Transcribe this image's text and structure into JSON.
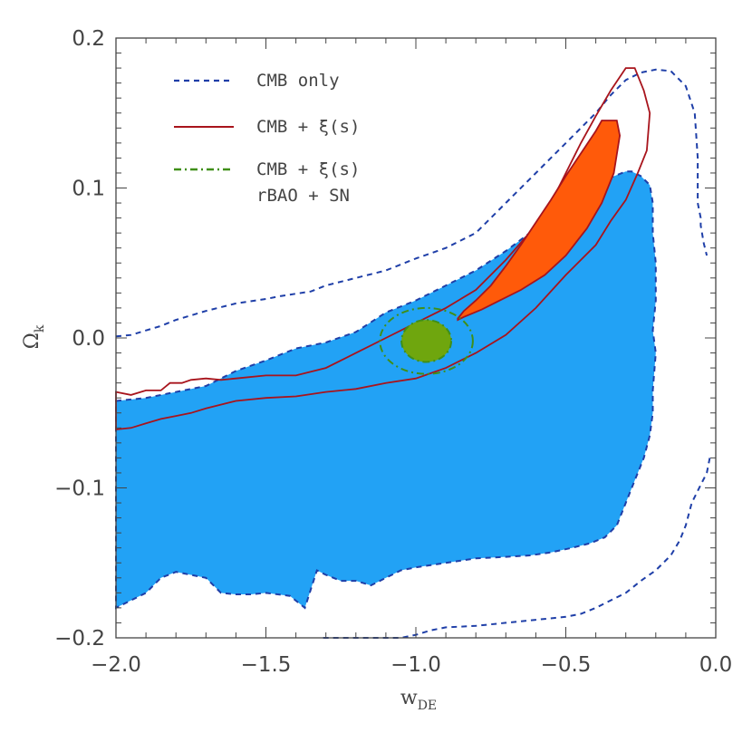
{
  "chart_data": {
    "type": "contour",
    "xlabel": "w",
    "xlabel_sub": "DE",
    "ylabel": "Ω",
    "ylabel_sub": "k",
    "xlim": [
      -2.0,
      0.0
    ],
    "ylim": [
      -0.2,
      0.2
    ],
    "xticks": [
      -2.0,
      -1.5,
      -1.0,
      -0.5,
      0.0
    ],
    "xtick_labels": [
      "−2.0",
      "−1.5",
      "−1.0",
      "−0.5",
      "0.0"
    ],
    "yticks": [
      -0.2,
      -0.1,
      0.0,
      0.1,
      0.2
    ],
    "ytick_labels": [
      "−0.2",
      "−0.1",
      "0.0",
      "0.1",
      "0.2"
    ],
    "grid": false,
    "legend_position": "top-left",
    "colors": {
      "cmb": "#1f3fa8",
      "cmb_fill": "#22a2f5",
      "xi": "#a8141c",
      "xi_fill": "#ff5a0a",
      "all": "#3f8f18",
      "all_fill": "#6fa60e",
      "frame": "#444444"
    },
    "series": [
      {
        "name": "CMB only",
        "line_style": "dashed",
        "color_key": "cmb",
        "inner_filled": {
          "color_key": "cmb_fill",
          "points": [
            [
              -2.0,
              -0.042
            ],
            [
              -1.9,
              -0.04
            ],
            [
              -1.7,
              -0.032
            ],
            [
              -1.6,
              -0.022
            ],
            [
              -1.5,
              -0.015
            ],
            [
              -1.4,
              -0.007
            ],
            [
              -1.3,
              -0.003
            ],
            [
              -1.2,
              0.004
            ],
            [
              -1.1,
              0.017
            ],
            [
              -1.0,
              0.025
            ],
            [
              -0.9,
              0.035
            ],
            [
              -0.8,
              0.045
            ],
            [
              -0.7,
              0.058
            ],
            [
              -0.6,
              0.073
            ],
            [
              -0.5,
              0.088
            ],
            [
              -0.45,
              0.095
            ],
            [
              -0.4,
              0.102
            ],
            [
              -0.35,
              0.107
            ],
            [
              -0.3,
              0.111
            ],
            [
              -0.28,
              0.111
            ],
            [
              -0.25,
              0.108
            ],
            [
              -0.22,
              0.102
            ],
            [
              -0.21,
              0.09
            ],
            [
              -0.21,
              0.07
            ],
            [
              -0.2,
              0.05
            ],
            [
              -0.2,
              0.025
            ],
            [
              -0.21,
              0.005
            ],
            [
              -0.2,
              -0.01
            ],
            [
              -0.21,
              -0.035
            ],
            [
              -0.21,
              -0.05
            ],
            [
              -0.22,
              -0.065
            ],
            [
              -0.24,
              -0.08
            ],
            [
              -0.27,
              -0.095
            ],
            [
              -0.3,
              -0.11
            ],
            [
              -0.33,
              -0.125
            ],
            [
              -0.37,
              -0.133
            ],
            [
              -0.42,
              -0.137
            ],
            [
              -0.48,
              -0.14
            ],
            [
              -0.55,
              -0.143
            ],
            [
              -0.62,
              -0.145
            ],
            [
              -0.7,
              -0.146
            ],
            [
              -0.8,
              -0.147
            ],
            [
              -0.9,
              -0.15
            ],
            [
              -1.0,
              -0.153
            ],
            [
              -1.05,
              -0.155
            ],
            [
              -1.1,
              -0.16
            ],
            [
              -1.15,
              -0.165
            ],
            [
              -1.2,
              -0.162
            ],
            [
              -1.25,
              -0.162
            ],
            [
              -1.3,
              -0.158
            ],
            [
              -1.33,
              -0.155
            ],
            [
              -1.37,
              -0.18
            ],
            [
              -1.42,
              -0.172
            ],
            [
              -1.5,
              -0.17
            ],
            [
              -1.55,
              -0.171
            ],
            [
              -1.6,
              -0.171
            ],
            [
              -1.65,
              -0.17
            ],
            [
              -1.7,
              -0.16
            ],
            [
              -1.75,
              -0.158
            ],
            [
              -1.8,
              -0.156
            ],
            [
              -1.85,
              -0.16
            ],
            [
              -1.9,
              -0.17
            ],
            [
              -1.95,
              -0.175
            ],
            [
              -2.0,
              -0.18
            ]
          ]
        },
        "outer": {
          "closed": false,
          "points": [
            [
              -2.0,
              0.001
            ],
            [
              -1.95,
              0.002
            ],
            [
              -1.9,
              0.005
            ],
            [
              -1.85,
              0.008
            ],
            [
              -1.8,
              0.012
            ],
            [
              -1.7,
              0.018
            ],
            [
              -1.6,
              0.023
            ],
            [
              -1.5,
              0.026
            ],
            [
              -1.45,
              0.028
            ],
            [
              -1.35,
              0.031
            ],
            [
              -1.3,
              0.035
            ],
            [
              -1.2,
              0.04
            ],
            [
              -1.1,
              0.045
            ],
            [
              -1.0,
              0.053
            ],
            [
              -0.9,
              0.06
            ],
            [
              -0.8,
              0.07
            ],
            [
              -0.7,
              0.09
            ],
            [
              -0.6,
              0.11
            ],
            [
              -0.5,
              0.13
            ],
            [
              -0.4,
              0.15
            ],
            [
              -0.35,
              0.162
            ],
            [
              -0.3,
              0.172
            ],
            [
              -0.25,
              0.177
            ],
            [
              -0.2,
              0.179
            ],
            [
              -0.15,
              0.178
            ],
            [
              -0.1,
              0.168
            ],
            [
              -0.07,
              0.15
            ],
            [
              -0.06,
              0.12
            ],
            [
              -0.06,
              0.09
            ],
            [
              -0.05,
              0.08
            ],
            [
              -0.05,
              0.075
            ],
            [
              -0.04,
              0.063
            ],
            [
              -0.03,
              0.055
            ]
          ],
          "lower_arc": [
            [
              -0.02,
              -0.08
            ],
            [
              -0.03,
              -0.09
            ],
            [
              -0.05,
              -0.098
            ],
            [
              -0.08,
              -0.11
            ],
            [
              -0.1,
              -0.125
            ],
            [
              -0.12,
              -0.135
            ],
            [
              -0.15,
              -0.145
            ],
            [
              -0.2,
              -0.155
            ],
            [
              -0.25,
              -0.162
            ],
            [
              -0.3,
              -0.17
            ],
            [
              -0.35,
              -0.175
            ],
            [
              -0.4,
              -0.18
            ],
            [
              -0.45,
              -0.184
            ],
            [
              -0.5,
              -0.186
            ],
            [
              -0.6,
              -0.188
            ],
            [
              -0.7,
              -0.19
            ],
            [
              -0.8,
              -0.192
            ],
            [
              -0.9,
              -0.193
            ],
            [
              -0.95,
              -0.195
            ],
            [
              -1.0,
              -0.198
            ],
            [
              -1.05,
              -0.2
            ],
            [
              -1.1,
              -0.2
            ],
            [
              -1.2,
              -0.2
            ],
            [
              -1.31,
              -0.2
            ]
          ]
        }
      },
      {
        "name": "CMB + ξ(s)",
        "line_style": "solid",
        "color_key": "xi",
        "inner_filled": {
          "color_key": "xi_fill",
          "points": [
            [
              -0.86,
              0.013
            ],
            [
              -0.84,
              0.018
            ],
            [
              -0.8,
              0.025
            ],
            [
              -0.75,
              0.035
            ],
            [
              -0.7,
              0.048
            ],
            [
              -0.65,
              0.062
            ],
            [
              -0.6,
              0.077
            ],
            [
              -0.55,
              0.092
            ],
            [
              -0.5,
              0.108
            ],
            [
              -0.45,
              0.123
            ],
            [
              -0.4,
              0.138
            ],
            [
              -0.38,
              0.145
            ],
            [
              -0.33,
              0.145
            ],
            [
              -0.32,
              0.135
            ],
            [
              -0.34,
              0.11
            ],
            [
              -0.38,
              0.09
            ],
            [
              -0.43,
              0.073
            ],
            [
              -0.5,
              0.055
            ],
            [
              -0.57,
              0.042
            ],
            [
              -0.65,
              0.032
            ],
            [
              -0.72,
              0.025
            ],
            [
              -0.78,
              0.019
            ],
            [
              -0.84,
              0.014
            ],
            [
              -0.86,
              0.012
            ]
          ]
        },
        "outer": {
          "closed": true,
          "points": [
            [
              -2.0,
              -0.036
            ],
            [
              -1.95,
              -0.038
            ],
            [
              -1.9,
              -0.035
            ],
            [
              -1.85,
              -0.035
            ],
            [
              -1.82,
              -0.03
            ],
            [
              -1.78,
              -0.03
            ],
            [
              -1.75,
              -0.028
            ],
            [
              -1.7,
              -0.027
            ],
            [
              -1.65,
              -0.028
            ],
            [
              -1.6,
              -0.027
            ],
            [
              -1.5,
              -0.025
            ],
            [
              -1.4,
              -0.025
            ],
            [
              -1.3,
              -0.02
            ],
            [
              -1.2,
              -0.01
            ],
            [
              -1.1,
              0.0
            ],
            [
              -1.0,
              0.01
            ],
            [
              -0.9,
              0.02
            ],
            [
              -0.8,
              0.032
            ],
            [
              -0.7,
              0.052
            ],
            [
              -0.6,
              0.075
            ],
            [
              -0.55,
              0.09
            ],
            [
              -0.5,
              0.11
            ],
            [
              -0.45,
              0.13
            ],
            [
              -0.4,
              0.148
            ],
            [
              -0.35,
              0.165
            ],
            [
              -0.3,
              0.18
            ],
            [
              -0.27,
              0.18
            ],
            [
              -0.24,
              0.165
            ],
            [
              -0.22,
              0.15
            ],
            [
              -0.23,
              0.125
            ],
            [
              -0.26,
              0.11
            ],
            [
              -0.3,
              0.092
            ],
            [
              -0.35,
              0.078
            ],
            [
              -0.4,
              0.062
            ],
            [
              -0.5,
              0.042
            ],
            [
              -0.6,
              0.02
            ],
            [
              -0.7,
              0.002
            ],
            [
              -0.8,
              -0.01
            ],
            [
              -0.9,
              -0.02
            ],
            [
              -1.0,
              -0.027
            ],
            [
              -1.1,
              -0.03
            ],
            [
              -1.2,
              -0.034
            ],
            [
              -1.3,
              -0.036
            ],
            [
              -1.4,
              -0.039
            ],
            [
              -1.5,
              -0.04
            ],
            [
              -1.6,
              -0.042
            ],
            [
              -1.7,
              -0.047
            ],
            [
              -1.75,
              -0.05
            ],
            [
              -1.8,
              -0.052
            ],
            [
              -1.85,
              -0.054
            ],
            [
              -1.9,
              -0.057
            ],
            [
              -1.95,
              -0.06
            ],
            [
              -2.0,
              -0.061
            ]
          ]
        }
      },
      {
        "name": "CMB + ξ(s)",
        "name_line2": "rBAO + SN",
        "line_style": "dashdot",
        "color_key": "all",
        "inner_filled": {
          "color_key": "all_fill",
          "ellipse": {
            "cx": -0.965,
            "cy": -0.002,
            "rx": 0.083,
            "ry": 0.014
          }
        },
        "outer": {
          "ellipse": {
            "cx": -0.965,
            "cy": -0.002,
            "rx": 0.155,
            "ry": 0.022
          }
        }
      }
    ]
  }
}
